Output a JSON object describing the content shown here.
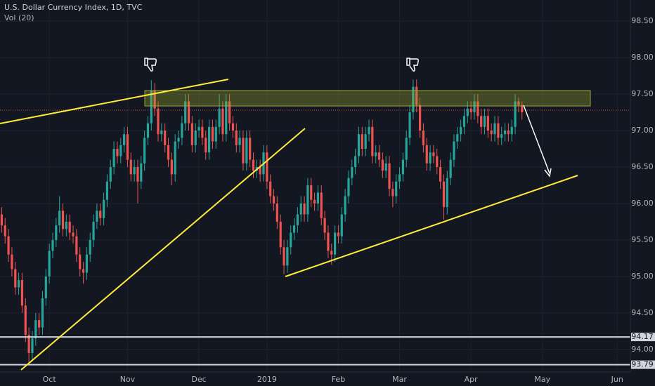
{
  "chart_data": {
    "type": "candlestick",
    "title": "U.S. Dollar Currency Index, 1D, TVC",
    "subtitle": "Vol (20)",
    "up_color": "#26a69a",
    "down_color": "#ef5350",
    "grid": true,
    "ylim": [
      93.69,
      98.79
    ],
    "yticks": [
      {
        "value": 94,
        "label": "94.00"
      },
      {
        "value": 94.5,
        "label": "94.50"
      },
      {
        "value": 95,
        "label": "95.00"
      },
      {
        "value": 95.5,
        "label": "95.50"
      },
      {
        "value": 96,
        "label": "96.00"
      },
      {
        "value": 96.5,
        "label": "96.50"
      },
      {
        "value": 97,
        "label": "97.00"
      },
      {
        "value": 97.5,
        "label": "97.50"
      },
      {
        "value": 98,
        "label": "98.00"
      },
      {
        "value": 98.5,
        "label": "98.50"
      }
    ],
    "levels": [
      94.17,
      93.79
    ],
    "categories": [
      null,
      null,
      null,
      null,
      null,
      null,
      null,
      null,
      null,
      null,
      null,
      null,
      null,
      null,
      "Oct",
      null,
      null,
      null,
      null,
      null,
      null,
      null,
      null,
      null,
      null,
      null,
      null,
      null,
      null,
      null,
      null,
      null,
      null,
      null,
      null,
      null,
      null,
      "Nov",
      null,
      null,
      null,
      null,
      null,
      null,
      null,
      null,
      null,
      null,
      null,
      null,
      null,
      null,
      null,
      null,
      null,
      null,
      null,
      null,
      "Dec",
      null,
      null,
      null,
      null,
      null,
      null,
      null,
      null,
      null,
      null,
      null,
      null,
      null,
      null,
      null,
      null,
      null,
      null,
      null,
      "2019",
      null,
      null,
      null,
      null,
      null,
      null,
      null,
      null,
      null,
      null,
      null,
      null,
      null,
      null,
      null,
      null,
      null,
      null,
      null,
      null,
      "Feb",
      null,
      null,
      null,
      null,
      null,
      null,
      null,
      null,
      null,
      null,
      null,
      null,
      null,
      null,
      null,
      null,
      null,
      "Mar",
      null,
      null,
      null,
      null,
      null,
      null,
      null,
      null,
      null,
      null,
      null,
      null,
      null,
      null,
      null,
      null,
      null,
      null,
      null,
      null,
      "Apr",
      null,
      null,
      null,
      null,
      null,
      null,
      null,
      null,
      null,
      null,
      null,
      null,
      null,
      null,
      null,
      null,
      null,
      null,
      null,
      null,
      "May",
      null,
      null,
      null,
      null,
      null,
      null,
      null,
      null,
      null,
      null,
      null,
      null,
      null,
      null,
      null,
      null,
      null,
      null,
      null,
      null,
      null,
      "Jun",
      null,
      null,
      null,
      null
    ],
    "open": [
      95.85,
      95.7,
      95.55,
      95.3,
      95.1,
      94.85,
      94.95,
      94.6,
      94.2,
      93.95,
      94.15,
      94.4,
      94.3,
      94.7,
      95.0,
      95.35,
      95.5,
      95.7,
      95.9,
      95.65,
      95.75,
      95.6,
      95.55,
      95.3,
      95.1,
      95.05,
      95.3,
      95.5,
      95.75,
      95.9,
      95.8,
      96.05,
      96.3,
      96.5,
      96.75,
      96.65,
      96.8,
      96.95,
      96.6,
      96.4,
      96.5,
      96.3,
      96.55,
      96.9,
      97.1,
      97.55,
      97.3,
      96.95,
      97.0,
      96.8,
      96.6,
      96.4,
      96.85,
      96.9,
      97.1,
      97.4,
      97.1,
      96.8,
      97.0,
      97.05,
      96.9,
      96.7,
      97.05,
      96.85,
      97.05,
      97.3,
      96.95,
      97.4,
      97.1,
      97.0,
      96.8,
      96.9,
      96.55,
      96.9,
      96.6,
      96.45,
      96.5,
      96.4,
      96.7,
      96.3,
      96.1,
      96.0,
      95.75,
      95.4,
      95.15,
      95.4,
      95.6,
      95.7,
      95.85,
      96.0,
      95.85,
      96.25,
      96.05,
      96.0,
      96.15,
      95.8,
      95.6,
      95.35,
      95.3,
      95.6,
      95.55,
      95.85,
      96.1,
      96.35,
      96.5,
      96.65,
      96.95,
      96.75,
      96.95,
      97.05,
      96.65,
      96.7,
      96.6,
      96.45,
      96.55,
      96.2,
      96.1,
      96.3,
      96.4,
      96.6,
      96.9,
      97.25,
      97.6,
      97.35,
      97.0,
      96.8,
      96.55,
      96.7,
      96.65,
      96.5,
      96.3,
      95.95,
      96.35,
      96.6,
      96.85,
      96.95,
      97.05,
      97.2,
      97.3,
      97.25,
      97.4,
      97.2,
      97.05,
      97.2,
      97.0,
      96.95,
      97.1,
      96.9,
      96.95,
      97.0,
      96.95,
      97.05,
      97.4,
      97.35,
      null,
      null,
      null,
      null,
      null,
      null,
      null,
      null,
      null,
      null,
      null,
      null,
      null,
      null,
      null,
      null,
      null,
      null,
      null,
      null,
      null,
      null,
      null,
      null,
      null,
      null,
      null,
      null,
      null,
      null,
      null,
      null
    ],
    "high": [
      95.95,
      95.8,
      95.65,
      95.4,
      95.2,
      95.05,
      95.05,
      94.7,
      94.3,
      94.25,
      94.5,
      94.5,
      94.8,
      95.1,
      95.45,
      95.6,
      95.8,
      96.1,
      96.0,
      95.85,
      95.85,
      95.7,
      95.65,
      95.4,
      95.2,
      95.4,
      95.6,
      95.85,
      96.0,
      96.0,
      96.15,
      96.4,
      96.6,
      96.85,
      96.85,
      96.9,
      97.05,
      97.05,
      96.7,
      96.6,
      96.6,
      96.65,
      97.0,
      97.2,
      97.69,
      97.65,
      97.4,
      97.1,
      97.1,
      96.9,
      96.7,
      96.95,
      97.0,
      97.2,
      97.5,
      97.5,
      97.2,
      97.1,
      97.15,
      97.15,
      97.0,
      97.15,
      97.15,
      97.15,
      97.5,
      97.4,
      97.5,
      97.5,
      97.2,
      97.1,
      97.0,
      97.0,
      97.0,
      97.0,
      96.7,
      96.6,
      96.6,
      96.8,
      96.8,
      96.4,
      96.2,
      96.1,
      95.85,
      95.5,
      95.5,
      95.7,
      95.8,
      95.95,
      96.1,
      96.1,
      96.35,
      96.35,
      96.15,
      96.25,
      96.25,
      95.9,
      95.7,
      95.45,
      95.7,
      95.7,
      95.95,
      96.2,
      96.45,
      96.6,
      96.75,
      97.05,
      97.05,
      97.05,
      97.15,
      97.15,
      96.8,
      96.8,
      96.7,
      96.65,
      96.65,
      96.3,
      96.4,
      96.5,
      96.7,
      97.0,
      97.35,
      97.7,
      97.7,
      97.45,
      97.1,
      96.9,
      96.8,
      96.8,
      96.75,
      96.6,
      96.4,
      96.45,
      96.7,
      96.95,
      97.05,
      97.15,
      97.3,
      97.4,
      97.4,
      97.5,
      97.5,
      97.3,
      97.3,
      97.3,
      97.1,
      97.2,
      97.2,
      97.05,
      97.1,
      97.1,
      97.15,
      97.5,
      97.45,
      97.4,
      null,
      null,
      null,
      null,
      null,
      null,
      null,
      null,
      null,
      null,
      null,
      null,
      null,
      null,
      null,
      null,
      null,
      null,
      null,
      null,
      null,
      null,
      null,
      null,
      null,
      null,
      null,
      null,
      null,
      null,
      null,
      null
    ],
    "low": [
      95.6,
      95.45,
      95.2,
      95.0,
      94.75,
      94.75,
      94.5,
      94.1,
      93.81,
      93.85,
      94.05,
      94.2,
      94.2,
      94.6,
      94.9,
      95.25,
      95.4,
      95.6,
      95.55,
      95.55,
      95.5,
      95.45,
      95.2,
      95.0,
      94.9,
      94.95,
      95.2,
      95.4,
      95.65,
      95.7,
      95.7,
      95.95,
      96.2,
      96.4,
      96.55,
      96.55,
      96.7,
      96.5,
      96.3,
      96.3,
      96.0,
      96.2,
      96.45,
      96.8,
      97.0,
      97.2,
      96.85,
      96.85,
      96.7,
      96.5,
      96.25,
      96.3,
      96.75,
      96.8,
      97.0,
      97.0,
      96.7,
      96.7,
      96.9,
      96.8,
      96.6,
      96.6,
      96.75,
      96.75,
      96.95,
      96.85,
      96.85,
      97.0,
      96.9,
      96.7,
      96.7,
      96.45,
      96.45,
      96.5,
      96.35,
      96.35,
      96.3,
      96.3,
      96.2,
      96.0,
      95.9,
      95.65,
      95.3,
      95.03,
      95.05,
      95.3,
      95.5,
      95.6,
      95.75,
      95.75,
      95.75,
      95.95,
      95.9,
      95.9,
      95.7,
      95.5,
      95.25,
      95.16,
      95.2,
      95.45,
      95.45,
      95.75,
      96.0,
      96.25,
      96.4,
      96.55,
      96.65,
      96.65,
      96.85,
      96.55,
      96.55,
      96.5,
      96.35,
      96.35,
      96.1,
      95.95,
      96.0,
      96.2,
      96.3,
      96.5,
      96.8,
      97.15,
      97.25,
      96.9,
      96.7,
      96.45,
      96.45,
      96.55,
      96.4,
      96.2,
      95.78,
      95.85,
      96.25,
      96.5,
      96.75,
      96.85,
      96.95,
      97.1,
      97.15,
      97.15,
      97.1,
      96.95,
      96.95,
      96.9,
      96.85,
      96.85,
      96.8,
      96.8,
      96.85,
      96.85,
      96.85,
      96.95,
      97.25,
      97.15,
      null,
      null,
      null,
      null,
      null,
      null,
      null,
      null,
      null,
      null,
      null,
      null,
      null,
      null,
      null,
      null,
      null,
      null,
      null,
      null,
      null,
      null,
      null,
      null,
      null,
      null,
      null,
      null,
      null,
      null,
      null,
      null
    ],
    "close": [
      95.7,
      95.55,
      95.3,
      95.1,
      94.85,
      94.95,
      94.6,
      94.2,
      93.95,
      94.15,
      94.4,
      94.3,
      94.7,
      95.0,
      95.35,
      95.5,
      95.7,
      95.9,
      95.65,
      95.75,
      95.6,
      95.55,
      95.3,
      95.1,
      95.05,
      95.3,
      95.5,
      95.75,
      95.9,
      95.8,
      96.05,
      96.3,
      96.5,
      96.75,
      96.65,
      96.8,
      96.95,
      96.6,
      96.4,
      96.5,
      96.3,
      96.55,
      96.9,
      97.1,
      97.55,
      97.3,
      96.95,
      97.0,
      96.8,
      96.6,
      96.4,
      96.85,
      96.9,
      97.1,
      97.4,
      97.1,
      96.8,
      97.0,
      97.05,
      96.9,
      96.7,
      97.05,
      96.85,
      97.05,
      97.3,
      96.95,
      97.4,
      97.1,
      97.0,
      96.8,
      96.9,
      96.55,
      96.9,
      96.6,
      96.45,
      96.5,
      96.4,
      96.7,
      96.3,
      96.1,
      96.0,
      95.75,
      95.4,
      95.15,
      95.4,
      95.6,
      95.7,
      95.85,
      96.0,
      95.85,
      96.25,
      96.05,
      96.0,
      96.15,
      95.8,
      95.6,
      95.35,
      95.3,
      95.6,
      95.55,
      95.85,
      96.1,
      96.35,
      96.5,
      96.65,
      96.95,
      96.75,
      96.95,
      97.05,
      96.65,
      96.7,
      96.6,
      96.45,
      96.55,
      96.2,
      96.1,
      96.3,
      96.4,
      96.6,
      96.9,
      97.25,
      97.6,
      97.35,
      97.0,
      96.8,
      96.55,
      96.7,
      96.65,
      96.5,
      96.3,
      95.95,
      96.35,
      96.6,
      96.85,
      96.95,
      97.05,
      97.2,
      97.3,
      97.25,
      97.4,
      97.2,
      97.05,
      97.2,
      97.0,
      96.95,
      97.1,
      96.9,
      96.95,
      97.0,
      96.95,
      97.05,
      97.4,
      97.35,
      97.25,
      null,
      null,
      null,
      null,
      null,
      null,
      null,
      null,
      null,
      null,
      null,
      null,
      null,
      null,
      null,
      null,
      null,
      null,
      null,
      null,
      null,
      null,
      null,
      null,
      null,
      null,
      null,
      null,
      null,
      null,
      null,
      null
    ]
  }
}
